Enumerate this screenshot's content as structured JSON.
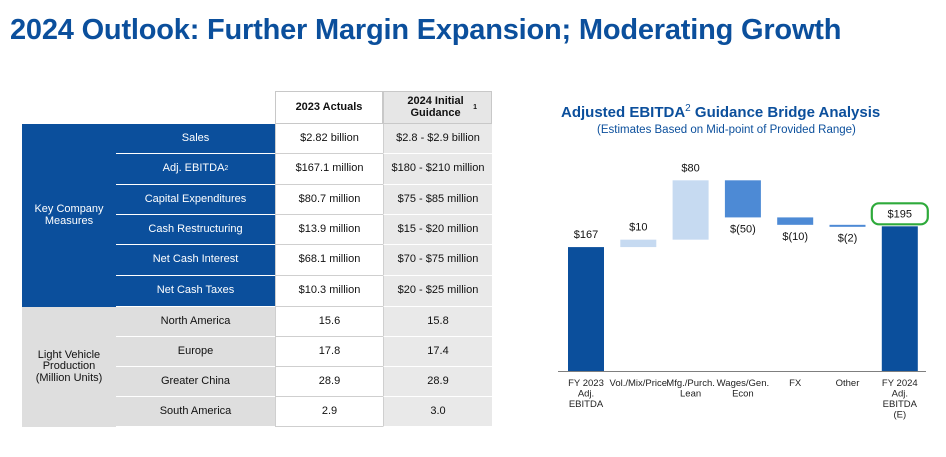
{
  "title": "2024 Outlook: Further Margin Expansion; Moderating Growth",
  "table": {
    "col_headers": [
      "2023 Actuals",
      "2024 Initial Guidance¹"
    ],
    "groups": [
      {
        "label": "Key Company Measures",
        "rows": [
          {
            "label": "Sales",
            "actual": "$2.82 billion",
            "guidance": "$2.8 - $2.9 billion"
          },
          {
            "label": "Adj. EBITDA²",
            "actual": "$167.1 million",
            "guidance": "$180 - $210 million"
          },
          {
            "label": "Capital Expenditures",
            "actual": "$80.7 million",
            "guidance": "$75 - $85 million"
          },
          {
            "label": "Cash Restructuring",
            "actual": "$13.9 million",
            "guidance": "$15 - $20 million"
          },
          {
            "label": "Net Cash Interest",
            "actual": "$68.1 million",
            "guidance": "$70 - $75 million"
          },
          {
            "label": "Net Cash Taxes",
            "actual": "$10.3 million",
            "guidance": "$20 - $25 million"
          }
        ]
      },
      {
        "label": "Light Vehicle Production (Million Units)",
        "rows": [
          {
            "label": "North America",
            "actual": "15.6",
            "guidance": "15.8"
          },
          {
            "label": "Europe",
            "actual": "17.8",
            "guidance": "17.4"
          },
          {
            "label": "Greater China",
            "actual": "28.9",
            "guidance": "28.9"
          },
          {
            "label": "South America",
            "actual": "2.9",
            "guidance": "3.0"
          }
        ]
      }
    ]
  },
  "chart_data": {
    "type": "bar",
    "subtype": "waterfall",
    "title": "Adjusted EBITDA² Guidance Bridge Analysis",
    "subtitle": "(Estimates Based on Mid-point of Provided Range)",
    "categories": [
      "FY 2023 Adj. EBITDA",
      "Vol./Mix/ Price",
      "Mfg./Purch. Lean",
      "Wages/ Gen. Econ",
      "FX",
      "Other",
      "FY 2024 Adj. EBITDA (E)"
    ],
    "values": [
      167,
      10,
      80,
      -50,
      -10,
      -2,
      195
    ],
    "value_labels": [
      "$167",
      "$10",
      "$80",
      "$(50)",
      "$(10)",
      "$(2)",
      "$195"
    ],
    "kinds": [
      "total",
      "increase",
      "increase",
      "decrease",
      "decrease",
      "decrease",
      "total"
    ],
    "highlighted": "$195",
    "colors": {
      "total": "#0b4f9c",
      "increase": "#c6daf1",
      "decrease": "#4d8ad5",
      "highlight_outline": "#2eaa3b",
      "axis": "#7f7f7f"
    },
    "grid": false,
    "legend": "none"
  },
  "colors": {
    "title": "#0b4f9c",
    "group_blue": "#0b4f9c",
    "group_grey": "#dedede"
  }
}
